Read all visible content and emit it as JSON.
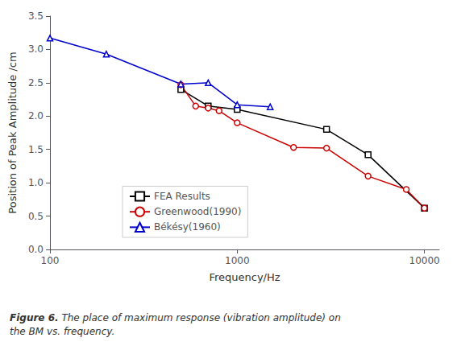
{
  "chart_data": {
    "type": "line",
    "log": "x",
    "grid": false,
    "legend": "lower left",
    "xlabel": "Frequency/Hz",
    "ylabel": "Position of Peak Amplitude /cm",
    "xlim": [
      100,
      12000
    ],
    "xticks": [
      100,
      1000,
      10000
    ],
    "ylim": [
      0.0,
      3.5
    ],
    "yticks": [
      {
        "value": 0.0,
        "label": "0.0"
      },
      0.5,
      {
        "value": 1.0,
        "label": "1.0"
      },
      1.5,
      {
        "value": 2.0,
        "label": "2.0"
      },
      2.5,
      {
        "value": 3.0,
        "label": "3.0"
      },
      3.5
    ],
    "annotations": [
      "Figure 6.",
      " The place of maximum response (vibration amplitude) on\nthe BM vs. frequency."
    ],
    "series": [
      {
        "name": "FEA Results",
        "color": "#000000",
        "marker": "square",
        "x": [
          500,
          700,
          1000,
          3000,
          5000,
          10000
        ],
        "values": [
          2.4,
          2.15,
          2.1,
          1.8,
          1.42,
          0.62
        ]
      },
      {
        "name": "Greenwood(1990)",
        "color": "#cc0000",
        "marker": "circle",
        "x": [
          500,
          600,
          700,
          800,
          1000,
          2000,
          3000,
          5000,
          8000,
          10000
        ],
        "values": [
          2.47,
          2.15,
          2.12,
          2.08,
          1.9,
          1.53,
          1.52,
          1.1,
          0.9,
          0.62
        ]
      },
      {
        "name": "Békésy(1960)",
        "color": "#0000cc",
        "marker": "triangle",
        "x": [
          100,
          200,
          500,
          700,
          1000,
          1500
        ],
        "values": [
          3.17,
          2.93,
          2.48,
          2.5,
          2.17,
          2.14
        ]
      }
    ]
  }
}
